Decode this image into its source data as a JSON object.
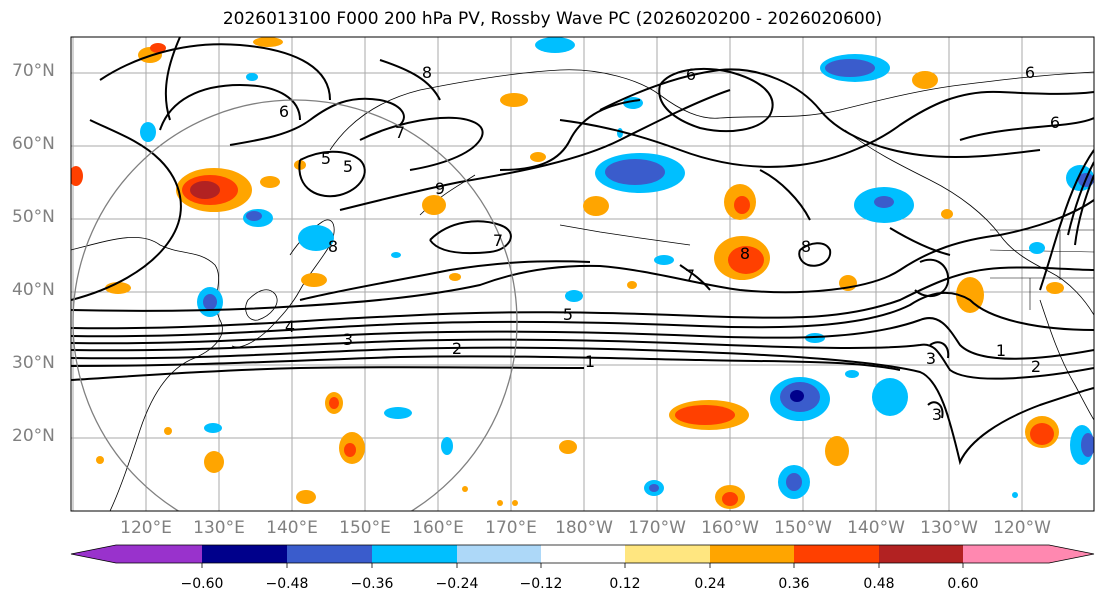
{
  "title": "2026013100 F000 200 hPa PV, Rossby Wave PC (2026020200 - 2026020600)",
  "lat_labels": [
    "70°N",
    "60°N",
    "50°N",
    "40°N",
    "30°N",
    "20°N"
  ],
  "lon_labels": [
    "120°E",
    "130°E",
    "140°E",
    "150°E",
    "160°E",
    "170°E",
    "180°W",
    "170°W",
    "160°W",
    "150°W",
    "140°W",
    "130°W",
    "120°W"
  ],
  "contour_labels": [
    "6",
    "6",
    "6",
    "6",
    "5",
    "5",
    "7",
    "7",
    "7",
    "8",
    "8",
    "8",
    "8",
    "9",
    "1",
    "1",
    "2",
    "2",
    "3",
    "3",
    "3",
    "4",
    "5"
  ],
  "colorbar": {
    "tick_labels": [
      "−0.60",
      "−0.48",
      "−0.36",
      "−0.24",
      "−0.12",
      "0.12",
      "0.24",
      "0.36",
      "0.48",
      "0.60"
    ],
    "colors": [
      "#9932cc",
      "#00008b",
      "#3a5ccc",
      "#00bfff",
      "#add8f8",
      "#ffffff",
      "#ffe680",
      "#ffa500",
      "#ff4000",
      "#b22222",
      "#ff88b0"
    ]
  }
}
